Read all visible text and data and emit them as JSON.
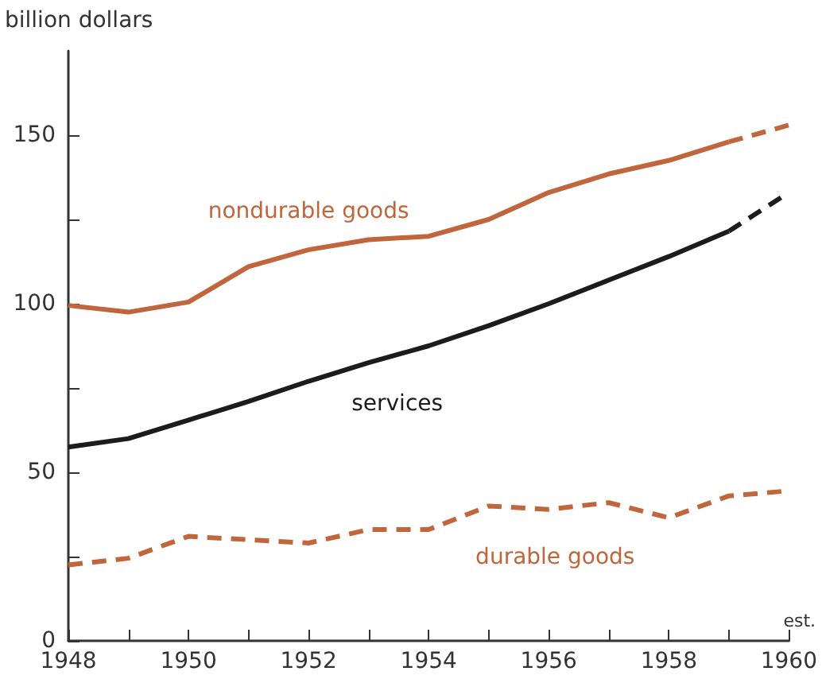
{
  "chart_data": {
    "type": "line",
    "ylabel": "billion dollars",
    "annotations": [
      "est."
    ],
    "xlim": [
      1948,
      1960
    ],
    "ylim": [
      0,
      175
    ],
    "xticks": [
      1948,
      {
        "value": 1949,
        "label": null
      },
      1950,
      {
        "value": 1951,
        "label": null
      },
      1952,
      {
        "value": 1953,
        "label": null
      },
      1954,
      {
        "value": 1955,
        "label": null
      },
      1956,
      {
        "value": 1957,
        "label": null
      },
      1958,
      {
        "value": 1959,
        "label": null
      },
      1960
    ],
    "yticks": [
      0,
      {
        "value": 25,
        "label": null
      },
      50,
      {
        "value": 75,
        "label": null
      },
      100,
      {
        "value": 125,
        "label": null
      },
      150
    ],
    "grid": false,
    "legend": false,
    "marker": "none",
    "series": [
      {
        "name": "nondurable goods",
        "color": "#c0653c",
        "line_style": "solid",
        "x": [
          1948,
          1949,
          1950,
          1951,
          1952,
          1953,
          1954,
          1955,
          1956,
          1957,
          1958,
          1959
        ],
        "values": [
          99.5,
          97.5,
          100.5,
          111,
          116,
          119,
          120,
          125,
          133,
          138.5,
          142.5,
          148
        ]
      },
      {
        "color": "#c0653c",
        "line_style": "dashed",
        "x": [
          1959,
          1960
        ],
        "values": [
          148,
          153
        ]
      },
      {
        "name": "services",
        "color": "#1c1c1c",
        "line_style": "solid",
        "x": [
          1948,
          1949,
          1950,
          1951,
          1952,
          1953,
          1954,
          1955,
          1956,
          1957,
          1958,
          1959
        ],
        "values": [
          57.5,
          60,
          65.5,
          71,
          77,
          82.5,
          87.5,
          93.5,
          100,
          107,
          114,
          121.5
        ]
      },
      {
        "color": "#1c1c1c",
        "line_style": "dashed",
        "x": [
          1959,
          1960
        ],
        "values": [
          121.5,
          133
        ]
      },
      {
        "name": "durable goods",
        "color": "#c0653c",
        "line_style": "dashed",
        "x": [
          1948,
          1949,
          1950,
          1951,
          1952,
          1953,
          1954,
          1955,
          1956,
          1957,
          1958,
          1959,
          1960
        ],
        "values": [
          22.5,
          24.5,
          31,
          30,
          29,
          33,
          33,
          40,
          39,
          41,
          36.5,
          43,
          44.5
        ]
      }
    ]
  }
}
